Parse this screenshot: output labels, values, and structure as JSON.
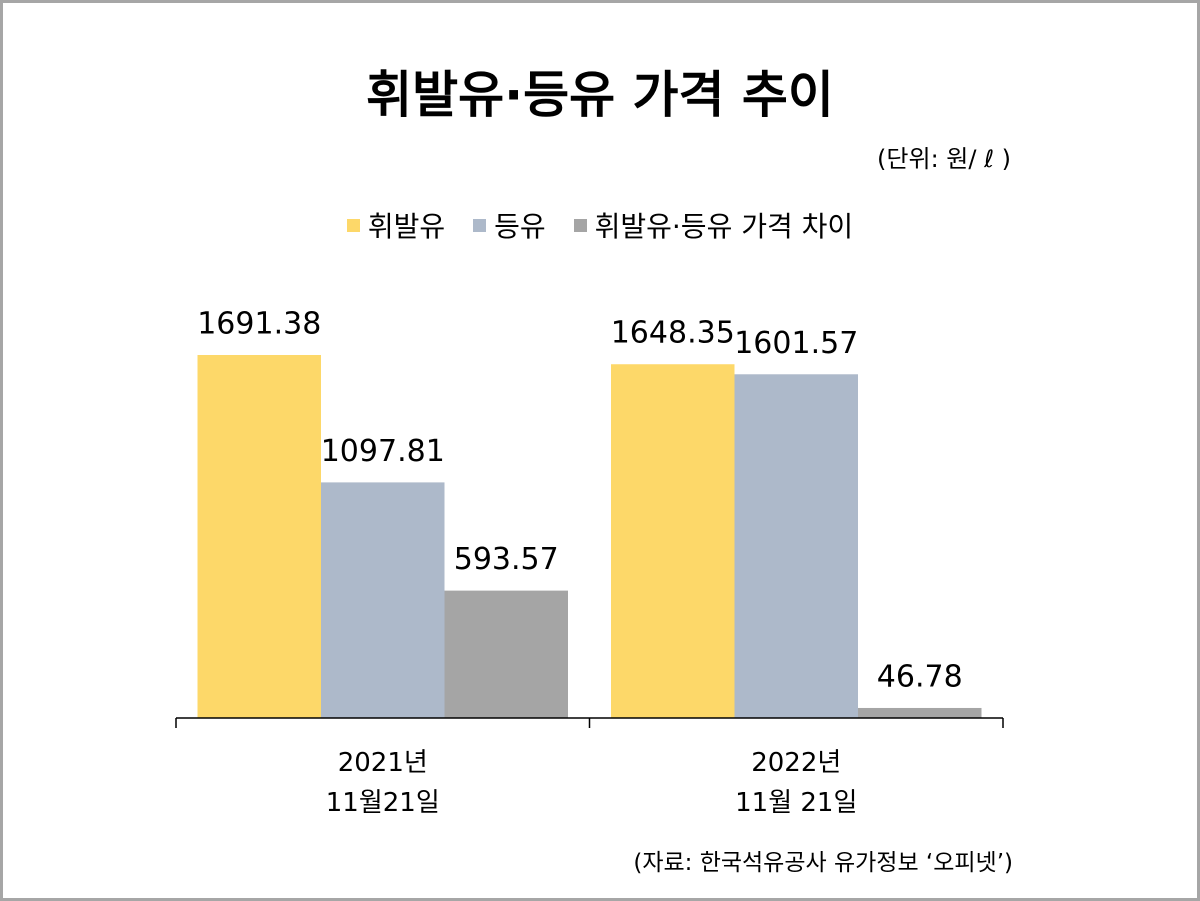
{
  "chart_data": {
    "type": "bar",
    "title": "휘발유·등유 가격 추이",
    "unit": "(단위: 원/ ℓ )",
    "source": "(자료: 한국석유공사 유가정보 ‘오피넷’)",
    "categories": [
      "2021년\n11월21일",
      "2022년\n11월 21일"
    ],
    "series": [
      {
        "name": "휘발유",
        "color": "#fdd869",
        "values": [
          1691.38,
          1648.35
        ]
      },
      {
        "name": "등유",
        "color": "#adb9ca",
        "values": [
          1097.81,
          1601.57
        ]
      },
      {
        "name": "휘발유·등유 가격 차이",
        "color": "#a5a5a5",
        "values": [
          593.57,
          46.78
        ]
      }
    ]
  }
}
